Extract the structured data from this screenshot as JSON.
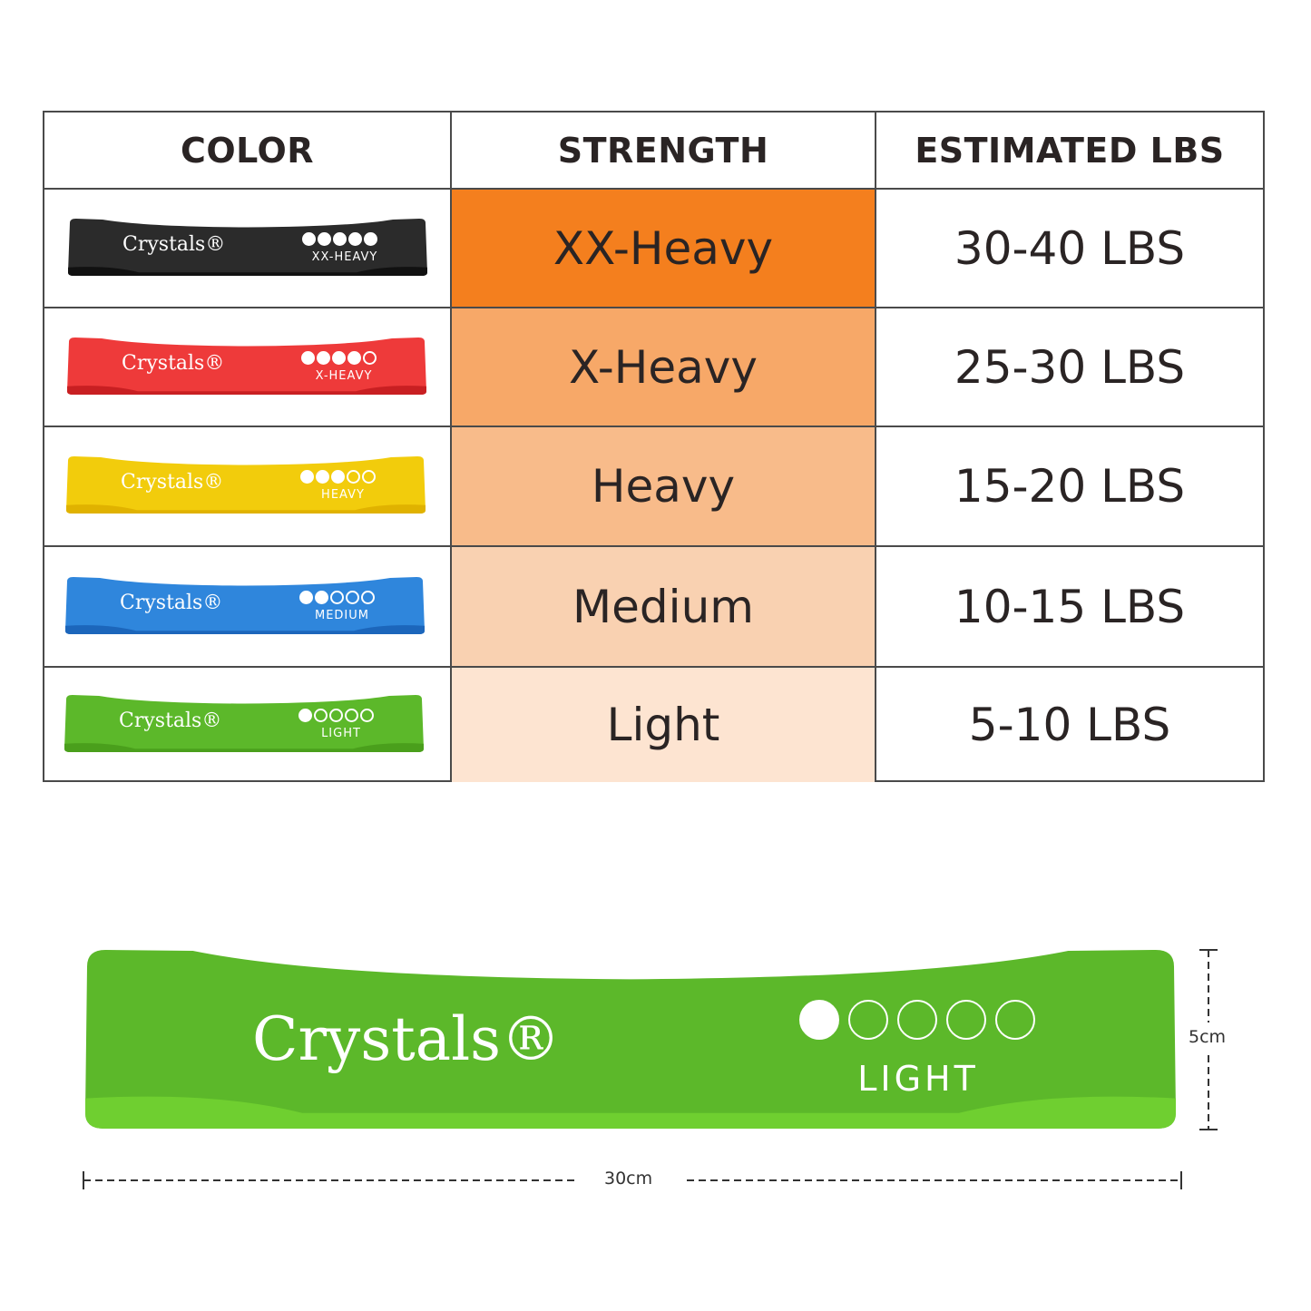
{
  "table": {
    "headers": [
      "COLOR",
      "STRENGTH",
      "ESTIMATED LBS"
    ],
    "rows": [
      {
        "brand": "Crystals®",
        "band_label": "XX-HEAVY",
        "dots_filled": 5,
        "band_color": "#2b2b2b",
        "band_edge": "#111111",
        "strength": "XX-Heavy",
        "strength_bg": "#F47F1E",
        "lbs": "30-40 LBS"
      },
      {
        "brand": "Crystals®",
        "band_label": "X-HEAVY",
        "dots_filled": 4,
        "band_color": "#ee3a3a",
        "band_edge": "#c81f22",
        "strength": "X-Heavy",
        "strength_bg": "#F7A868",
        "lbs": "25-30 LBS"
      },
      {
        "brand": "Crystals®",
        "band_label": "HEAVY",
        "dots_filled": 3,
        "band_color": "#f2cc0c",
        "band_edge": "#e0b200",
        "strength": "Heavy",
        "strength_bg": "#F8BB8A",
        "lbs": "15-20 LBS"
      },
      {
        "brand": "Crystals®",
        "band_label": "MEDIUM",
        "dots_filled": 2,
        "band_color": "#2f86dc",
        "band_edge": "#1c66bb",
        "strength": "Medium",
        "strength_bg": "#F9D1B1",
        "lbs": "10-15 LBS"
      },
      {
        "brand": "Crystals®",
        "band_label": "LIGHT",
        "dots_filled": 1,
        "band_color": "#5cb82a",
        "band_edge": "#4a9f1c",
        "strength": "Light",
        "strength_bg": "#FDE4D1",
        "lbs": "5-10 LBS"
      }
    ]
  },
  "featured_band": {
    "brand": "Crystals®",
    "label": "LIGHT",
    "dots_filled": 1,
    "band_color": "#5cb82a",
    "band_edge": "#6fcf30"
  },
  "dimensions": {
    "width": "30cm",
    "height": "5cm"
  }
}
